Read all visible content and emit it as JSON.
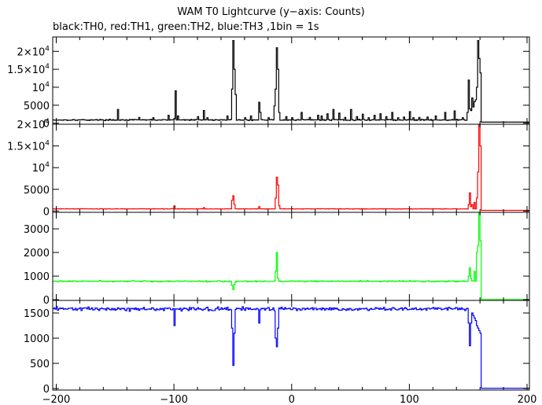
{
  "chart_data": {
    "type": "line",
    "title": "WAM T0 Lightcurve (y−axis: Counts)",
    "subtitle": "black:TH0, red:TH1, green:TH2, blue:TH3 ,1bin = 1s",
    "xlim": [
      -203,
      202
    ],
    "x_ticks": [
      {
        "value": -200,
        "label": "−200"
      },
      {
        "value": -100,
        "label": "−100"
      },
      {
        "value": 0,
        "label": "0"
      },
      {
        "value": 100,
        "label": "100"
      },
      {
        "value": 200,
        "label": "200"
      }
    ],
    "panels": [
      {
        "name": "TH0",
        "color": "#000000",
        "ylim": [
          -300,
          24000
        ],
        "y_ticks": [
          {
            "value": 0,
            "label": "0"
          },
          {
            "value": 5000,
            "label": "5000"
          },
          {
            "value": 10000,
            "label": "10",
            "exp": "4"
          },
          {
            "value": 15000,
            "label": "1.5×10",
            "exp": "4"
          },
          {
            "value": 20000,
            "label": "2×10",
            "exp": "4"
          }
        ],
        "baseline": 900,
        "noise": 150,
        "post_level": 300,
        "events": [
          [
            -148,
            3800
          ],
          [
            -130,
            1600
          ],
          [
            -118,
            1500
          ],
          [
            -105,
            2200
          ],
          [
            -100,
            1200
          ],
          [
            -99,
            9000
          ],
          [
            -97,
            2000
          ],
          [
            -80,
            1800
          ],
          [
            -75,
            3500
          ],
          [
            -72,
            1500
          ],
          [
            -55,
            2000
          ],
          [
            -51,
            9500
          ],
          [
            -50,
            23000
          ],
          [
            -49,
            15000
          ],
          [
            -48,
            8000
          ],
          [
            -40,
            1500
          ],
          [
            -35,
            2000
          ],
          [
            -28,
            5800
          ],
          [
            -27,
            3000
          ],
          [
            -20,
            1500
          ],
          [
            -15,
            4800
          ],
          [
            -14,
            9500
          ],
          [
            -13,
            21000
          ],
          [
            -12,
            15000
          ],
          [
            -11,
            3000
          ],
          [
            -5,
            1800
          ],
          [
            0,
            1500
          ],
          [
            8,
            3000
          ],
          [
            15,
            1600
          ],
          [
            22,
            2200
          ],
          [
            25,
            2000
          ],
          [
            30,
            2600
          ],
          [
            35,
            3800
          ],
          [
            40,
            2800
          ],
          [
            45,
            1600
          ],
          [
            50,
            3800
          ],
          [
            55,
            1800
          ],
          [
            60,
            2500
          ],
          [
            65,
            1500
          ],
          [
            70,
            2200
          ],
          [
            75,
            2600
          ],
          [
            80,
            1800
          ],
          [
            85,
            3000
          ],
          [
            90,
            1500
          ],
          [
            95,
            1700
          ],
          [
            100,
            3200
          ],
          [
            103,
            1500
          ],
          [
            108,
            1600
          ],
          [
            115,
            1700
          ],
          [
            122,
            2000
          ],
          [
            130,
            3000
          ],
          [
            138,
            3400
          ],
          [
            145,
            1500
          ],
          [
            149,
            3000
          ],
          [
            150,
            12000
          ],
          [
            151,
            4000
          ],
          [
            152,
            3500
          ],
          [
            153,
            7000
          ],
          [
            154,
            4500
          ],
          [
            155,
            6000
          ],
          [
            156,
            6500
          ],
          [
            157,
            10000
          ],
          [
            158,
            23000
          ],
          [
            159,
            18000
          ],
          [
            160,
            14000
          ]
        ]
      },
      {
        "name": "TH1",
        "color": "#ff0000",
        "ylim": [
          -300,
          20000
        ],
        "y_ticks": [
          {
            "value": 0,
            "label": "0"
          },
          {
            "value": 5000,
            "label": "5000"
          },
          {
            "value": 10000,
            "label": "10",
            "exp": "4"
          },
          {
            "value": 15000,
            "label": "1.5×10",
            "exp": "4"
          },
          {
            "value": 20000,
            "label": "2×10",
            "exp": "4"
          }
        ],
        "baseline": 500,
        "noise": 50,
        "post_level": 150,
        "events": [
          [
            -100,
            1200
          ],
          [
            -75,
            800
          ],
          [
            -51,
            2500
          ],
          [
            -50,
            3500
          ],
          [
            -49,
            1500
          ],
          [
            -28,
            1000
          ],
          [
            -14,
            3000
          ],
          [
            -13,
            7800
          ],
          [
            -12,
            6000
          ],
          [
            -11,
            1200
          ],
          [
            150,
            1500
          ],
          [
            151,
            4200
          ],
          [
            152,
            1000
          ],
          [
            153,
            1500
          ],
          [
            155,
            2000
          ],
          [
            157,
            3000
          ],
          [
            158,
            9000
          ],
          [
            159,
            20000
          ],
          [
            160,
            15000
          ]
        ]
      },
      {
        "name": "TH2",
        "color": "#00ff00",
        "ylim": [
          -30,
          3700
        ],
        "y_ticks": [
          {
            "value": 0,
            "label": "0"
          },
          {
            "value": 1000,
            "label": "1000"
          },
          {
            "value": 2000,
            "label": "2000"
          },
          {
            "value": 3000,
            "label": "3000"
          }
        ],
        "baseline": 780,
        "noise": 25,
        "post_level": 10,
        "events": [
          [
            -51,
            600
          ],
          [
            -50,
            430
          ],
          [
            -49,
            650
          ],
          [
            -14,
            1200
          ],
          [
            -13,
            2000
          ],
          [
            -12,
            900
          ],
          [
            150,
            1000
          ],
          [
            151,
            1350
          ],
          [
            152,
            900
          ],
          [
            155,
            1200
          ],
          [
            157,
            2000
          ],
          [
            158,
            2300
          ],
          [
            159,
            3700
          ],
          [
            160,
            2500
          ]
        ]
      },
      {
        "name": "TH3",
        "color": "#0000ff",
        "ylim": [
          -30,
          1750
        ],
        "y_ticks": [
          {
            "value": 0,
            "label": "0"
          },
          {
            "value": 500,
            "label": "500"
          },
          {
            "value": 1000,
            "label": "1000"
          },
          {
            "value": 1500,
            "label": "1500"
          }
        ],
        "baseline": 1580,
        "noise": 35,
        "post_level": 5,
        "events": [
          [
            -100,
            1250
          ],
          [
            -51,
            1200
          ],
          [
            -50,
            460
          ],
          [
            -49,
            1100
          ],
          [
            -28,
            1300
          ],
          [
            -14,
            1000
          ],
          [
            -13,
            830
          ],
          [
            -12,
            1200
          ],
          [
            150,
            1300
          ],
          [
            151,
            850
          ],
          [
            152,
            1300
          ],
          [
            153,
            1500
          ],
          [
            154,
            1450
          ],
          [
            155,
            1400
          ],
          [
            156,
            1350
          ],
          [
            157,
            1250
          ],
          [
            158,
            1200
          ],
          [
            159,
            1150
          ],
          [
            160,
            1100
          ]
        ]
      }
    ]
  }
}
